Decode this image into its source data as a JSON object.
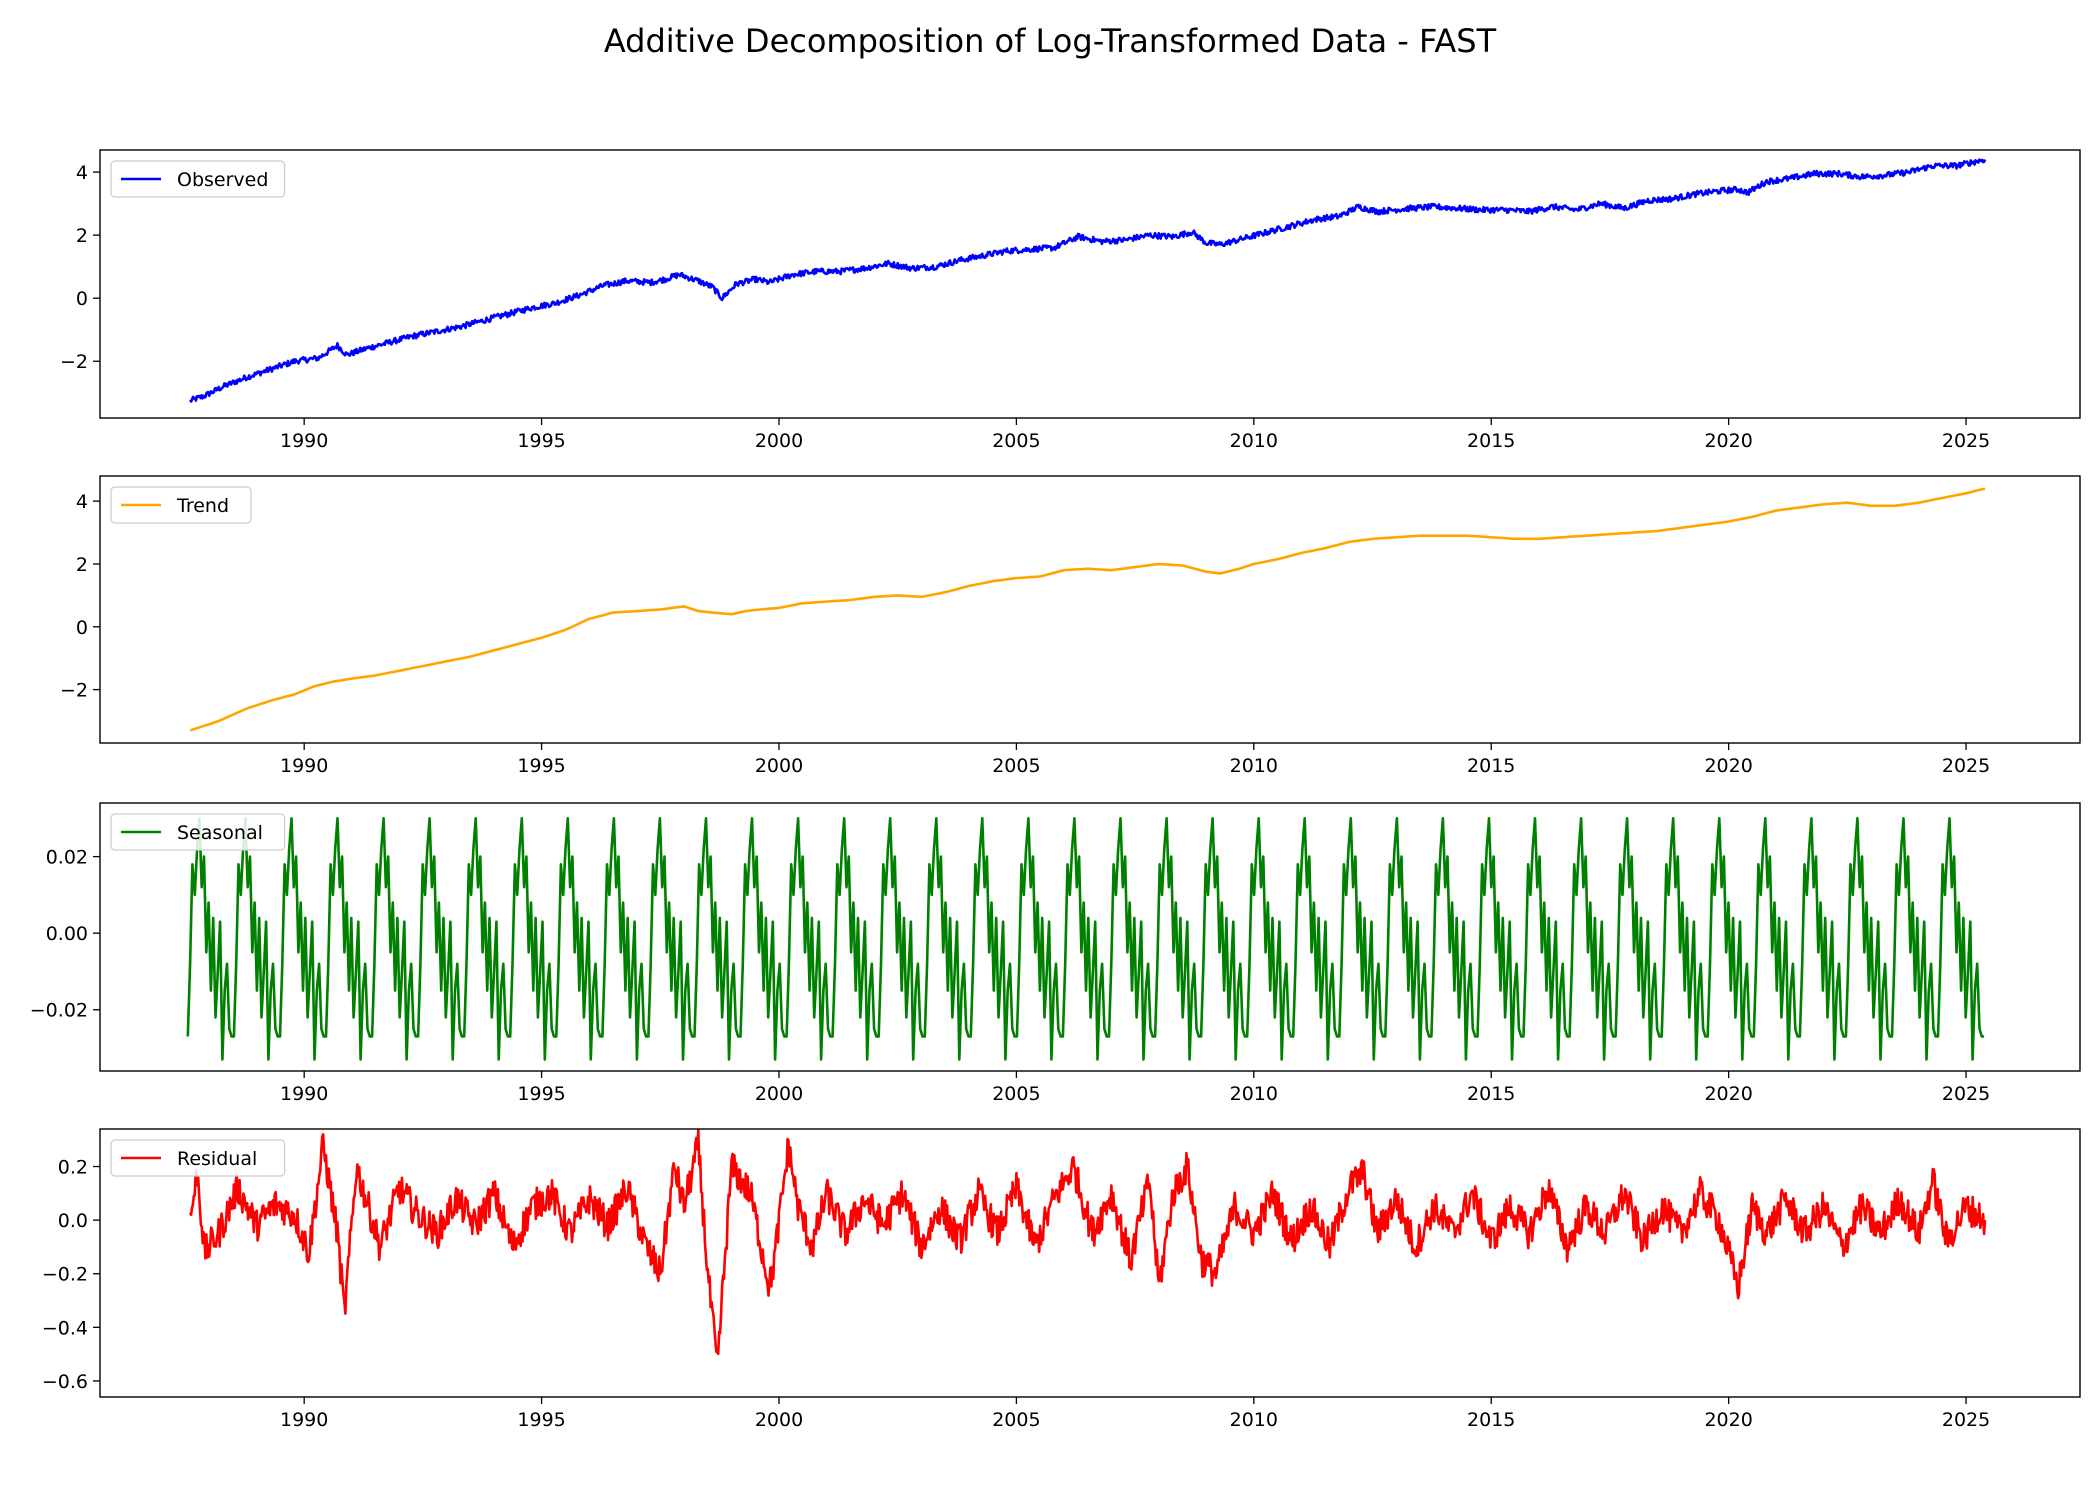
{
  "figure": {
    "title": "Additive Decomposition of Log-Transformed Data - FAST"
  },
  "chart_data": [
    {
      "type": "line",
      "panel": "observed",
      "series": [
        {
          "name": "Observed",
          "color": "#0000ff",
          "x": [
            1987.6,
            1987.9,
            1988.3,
            1988.8,
            1989.3,
            1989.8,
            1990.3,
            1990.7,
            1990.9,
            1991.3,
            1991.8,
            1992.3,
            1992.8,
            1993.3,
            1993.8,
            1994.3,
            1994.8,
            1995.3,
            1995.8,
            1996.3,
            1996.8,
            1997.3,
            1997.6,
            1997.9,
            1998.3,
            1998.6,
            1998.8,
            1999.1,
            1999.5,
            1999.8,
            2000.3,
            2000.8,
            2001.3,
            2001.8,
            2002.3,
            2002.8,
            2003.3,
            2003.8,
            2004.3,
            2004.8,
            2005.3,
            2005.8,
            2006.3,
            2006.8,
            2007.3,
            2007.8,
            2008.3,
            2008.7,
            2009.0,
            2009.3,
            2009.8,
            2010.3,
            2010.8,
            2011.3,
            2011.8,
            2012.2,
            2012.6,
            2013.3,
            2013.8,
            2014.3,
            2014.8,
            2015.3,
            2015.8,
            2016.3,
            2016.8,
            2017.3,
            2017.8,
            2018.3,
            2018.8,
            2019.3,
            2019.8,
            2020.2,
            2020.4,
            2020.8,
            2021.3,
            2021.8,
            2022.3,
            2022.8,
            2023.3,
            2023.8,
            2024.3,
            2024.8,
            2025.4
          ],
          "y": [
            -3.25,
            -3.1,
            -2.8,
            -2.5,
            -2.25,
            -2.0,
            -1.9,
            -1.5,
            -1.8,
            -1.6,
            -1.4,
            -1.2,
            -1.05,
            -0.9,
            -0.7,
            -0.5,
            -0.3,
            -0.15,
            0.1,
            0.4,
            0.55,
            0.5,
            0.6,
            0.75,
            0.55,
            0.35,
            0.0,
            0.45,
            0.6,
            0.5,
            0.75,
            0.85,
            0.85,
            0.95,
            1.1,
            0.95,
            1.0,
            1.2,
            1.35,
            1.5,
            1.55,
            1.6,
            1.95,
            1.8,
            1.85,
            2.0,
            1.95,
            2.1,
            1.75,
            1.7,
            1.9,
            2.1,
            2.3,
            2.5,
            2.6,
            2.9,
            2.75,
            2.85,
            2.9,
            2.85,
            2.8,
            2.8,
            2.75,
            2.9,
            2.8,
            3.0,
            2.85,
            3.1,
            3.15,
            3.3,
            3.4,
            3.45,
            3.35,
            3.7,
            3.8,
            3.95,
            3.95,
            3.85,
            3.9,
            4.0,
            4.2,
            4.2,
            4.4
          ]
        }
      ],
      "ylim": [
        -3.8,
        4.7
      ],
      "yticks": [
        -2,
        0,
        2,
        4
      ],
      "ytick_labels": [
        "−2",
        "0",
        "2",
        "4"
      ],
      "xlim": [
        1985.7,
        2027.4
      ],
      "xticks": [
        1990,
        1995,
        2000,
        2005,
        2010,
        2015,
        2020,
        2025
      ],
      "xtick_labels": [
        "1990",
        "1995",
        "2000",
        "2005",
        "2010",
        "2015",
        "2020",
        "2025"
      ],
      "legend": "upper-left"
    },
    {
      "type": "line",
      "panel": "trend",
      "series": [
        {
          "name": "Trend",
          "color": "#ffa500",
          "x": [
            1987.6,
            1988.2,
            1988.8,
            1989.3,
            1989.8,
            1990.2,
            1990.6,
            1991.0,
            1991.5,
            1992.0,
            1992.5,
            1993.0,
            1993.5,
            1994.0,
            1994.5,
            1995.0,
            1995.5,
            1996.0,
            1996.5,
            1997.0,
            1997.5,
            1998.0,
            1998.3,
            1998.6,
            1999.0,
            1999.3,
            1999.6,
            2000.0,
            2000.5,
            2001.0,
            2001.5,
            2002.0,
            2002.5,
            2003.0,
            2003.5,
            2004.0,
            2004.5,
            2005.0,
            2005.5,
            2006.0,
            2006.5,
            2007.0,
            2007.5,
            2008.0,
            2008.5,
            2009.0,
            2009.3,
            2009.7,
            2010.0,
            2010.5,
            2011.0,
            2011.5,
            2012.0,
            2012.5,
            2013.0,
            2013.5,
            2014.0,
            2014.5,
            2015.0,
            2015.5,
            2016.0,
            2016.5,
            2017.0,
            2017.5,
            2018.0,
            2018.5,
            2019.0,
            2019.5,
            2020.0,
            2020.5,
            2021.0,
            2021.5,
            2022.0,
            2022.5,
            2023.0,
            2023.5,
            2024.0,
            2024.5,
            2025.0,
            2025.4
          ],
          "y": [
            -3.3,
            -3.0,
            -2.6,
            -2.35,
            -2.15,
            -1.9,
            -1.75,
            -1.65,
            -1.55,
            -1.4,
            -1.25,
            -1.1,
            -0.95,
            -0.75,
            -0.55,
            -0.35,
            -0.1,
            0.25,
            0.45,
            0.5,
            0.55,
            0.65,
            0.5,
            0.45,
            0.4,
            0.5,
            0.55,
            0.6,
            0.75,
            0.8,
            0.85,
            0.95,
            1.0,
            0.95,
            1.1,
            1.3,
            1.45,
            1.55,
            1.6,
            1.8,
            1.85,
            1.8,
            1.9,
            2.0,
            1.95,
            1.75,
            1.7,
            1.85,
            2.0,
            2.15,
            2.35,
            2.5,
            2.7,
            2.8,
            2.85,
            2.9,
            2.9,
            2.9,
            2.85,
            2.8,
            2.8,
            2.85,
            2.9,
            2.95,
            3.0,
            3.05,
            3.15,
            3.25,
            3.35,
            3.5,
            3.7,
            3.8,
            3.9,
            3.95,
            3.85,
            3.85,
            3.95,
            4.1,
            4.25,
            4.4
          ]
        }
      ],
      "ylim": [
        -3.7,
        4.8
      ],
      "yticks": [
        -2,
        0,
        2,
        4
      ],
      "ytick_labels": [
        "−2",
        "0",
        "2",
        "4"
      ],
      "xlim": [
        1985.7,
        2027.4
      ],
      "xticks": [
        1990,
        1995,
        2000,
        2005,
        2010,
        2015,
        2020,
        2025
      ],
      "xtick_labels": [
        "1990",
        "1995",
        "2000",
        "2005",
        "2010",
        "2015",
        "2020",
        "2025"
      ],
      "legend": "upper-left"
    },
    {
      "type": "line",
      "panel": "seasonal",
      "series": [
        {
          "name": "Seasonal",
          "color": "#008000",
          "start": 1987.55,
          "end": 2025.4,
          "period_years": 0.97,
          "pattern": [
            -0.027,
            -0.008,
            0.018,
            0.01,
            0.022,
            0.03,
            0.012,
            0.02,
            -0.005,
            0.008,
            -0.015,
            0.004,
            -0.022,
            -0.01,
            0.003,
            -0.033,
            -0.015,
            -0.008,
            -0.025,
            -0.027
          ]
        }
      ],
      "ylim": [
        -0.036,
        0.034
      ],
      "yticks": [
        -0.02,
        0.0,
        0.02
      ],
      "ytick_labels": [
        "−0.02",
        "0.00",
        "0.02"
      ],
      "xlim": [
        1985.7,
        2027.4
      ],
      "xticks": [
        1990,
        1995,
        2000,
        2005,
        2010,
        2015,
        2020,
        2025
      ],
      "xtick_labels": [
        "1990",
        "1995",
        "2000",
        "2005",
        "2010",
        "2015",
        "2020",
        "2025"
      ],
      "legend": "upper-left"
    },
    {
      "type": "line",
      "panel": "residual",
      "series": [
        {
          "name": "Residual",
          "color": "#ff0000",
          "x": [
            1987.6,
            1987.75,
            1987.9,
            1988.2,
            1988.6,
            1989.0,
            1989.4,
            1989.8,
            1990.1,
            1990.4,
            1990.7,
            1990.85,
            1991.1,
            1991.3,
            1991.6,
            1992.0,
            1992.4,
            1992.8,
            1993.2,
            1993.6,
            1994.0,
            1994.4,
            1994.8,
            1995.2,
            1995.6,
            1996.0,
            1996.4,
            1996.8,
            1997.2,
            1997.5,
            1997.8,
            1998.0,
            1998.3,
            1998.5,
            1998.7,
            1998.8,
            1999.0,
            1999.4,
            1999.8,
            1999.9,
            2000.2,
            2000.4,
            2000.7,
            2001.0,
            2001.4,
            2001.8,
            2002.2,
            2002.6,
            2003.0,
            2003.4,
            2003.8,
            2004.2,
            2004.6,
            2005.0,
            2005.4,
            2005.8,
            2006.2,
            2006.6,
            2007.0,
            2007.4,
            2007.8,
            2008.0,
            2008.3,
            2008.6,
            2008.9,
            2009.2,
            2009.6,
            2010.0,
            2010.4,
            2010.8,
            2011.2,
            2011.6,
            2012.0,
            2012.3,
            2012.6,
            2013.0,
            2013.4,
            2013.8,
            2014.2,
            2014.6,
            2015.0,
            2015.4,
            2015.8,
            2016.2,
            2016.6,
            2017.0,
            2017.4,
            2017.8,
            2018.2,
            2018.6,
            2019.0,
            2019.4,
            2019.8,
            2020.2,
            2020.5,
            2020.8,
            2021.2,
            2021.6,
            2022.0,
            2022.4,
            2022.8,
            2023.2,
            2023.6,
            2024.0,
            2024.3,
            2024.6,
            2025.0,
            2025.4
          ],
          "y": [
            0.0,
            0.18,
            -0.12,
            -0.05,
            0.12,
            -0.02,
            0.06,
            0.02,
            -0.12,
            0.28,
            -0.05,
            -0.35,
            0.2,
            0.08,
            -0.1,
            0.12,
            0.02,
            -0.05,
            0.08,
            -0.02,
            0.1,
            -0.1,
            0.05,
            0.1,
            -0.05,
            0.08,
            -0.02,
            0.12,
            -0.1,
            -0.2,
            0.2,
            0.05,
            0.28,
            -0.2,
            -0.55,
            -0.3,
            0.2,
            0.1,
            -0.25,
            -0.15,
            0.28,
            0.05,
            -0.1,
            0.1,
            -0.05,
            0.08,
            -0.02,
            0.1,
            -0.1,
            0.05,
            -0.08,
            0.1,
            -0.05,
            0.12,
            -0.1,
            0.08,
            0.2,
            -0.05,
            0.1,
            -0.15,
            0.15,
            -0.25,
            0.1,
            0.2,
            -0.15,
            -0.2,
            0.05,
            -0.05,
            0.1,
            -0.08,
            0.05,
            -0.1,
            0.12,
            0.18,
            -0.05,
            0.08,
            -0.1,
            0.05,
            -0.05,
            0.1,
            -0.08,
            0.05,
            -0.05,
            0.12,
            -0.1,
            0.05,
            -0.05,
            0.1,
            -0.08,
            0.05,
            -0.05,
            0.1,
            0.0,
            -0.25,
            0.05,
            -0.05,
            0.08,
            -0.05,
            0.05,
            -0.1,
            0.05,
            -0.05,
            0.08,
            -0.05,
            0.15,
            -0.08,
            0.05,
            0.0
          ]
        }
      ],
      "ylim": [
        -0.66,
        0.34
      ],
      "yticks": [
        -0.6,
        -0.4,
        -0.2,
        0.0,
        0.2
      ],
      "ytick_labels": [
        "−0.6",
        "−0.4",
        "−0.2",
        "0.0",
        "0.2"
      ],
      "xlim": [
        1985.7,
        2027.4
      ],
      "xticks": [
        1990,
        1995,
        2000,
        2005,
        2010,
        2015,
        2020,
        2025
      ],
      "xtick_labels": [
        "1990",
        "1995",
        "2000",
        "2005",
        "2010",
        "2015",
        "2020",
        "2025"
      ],
      "legend": "upper-left"
    }
  ]
}
